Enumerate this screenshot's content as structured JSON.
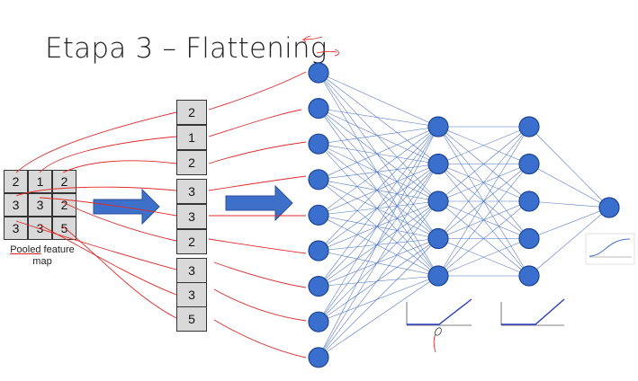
{
  "title": "Etapa 3 – Flattening",
  "pooled_map": {
    "rows": [
      [
        "2",
        "1",
        "2"
      ],
      [
        "3",
        "3",
        "2"
      ],
      [
        "3",
        "3",
        "5"
      ]
    ],
    "caption_underlined": "Pooled",
    "caption_rest": " feature",
    "caption_line2": "map"
  },
  "flattened": [
    "2",
    "1",
    "2",
    "3",
    "3",
    "2",
    "3",
    "3",
    "5"
  ],
  "network": {
    "input_nodes": 9,
    "hidden1_nodes": 5,
    "hidden2_nodes": 5,
    "output_nodes": 1
  },
  "colors": {
    "node_fill": "#3a6fce",
    "node_stroke": "#1e4593",
    "connection": "#4a72c4",
    "arrow_fill": "#3e70c9",
    "arrow_stroke": "#2a5298",
    "annotation": "#e02b2b",
    "cell_fill": "#d9d9d9"
  }
}
